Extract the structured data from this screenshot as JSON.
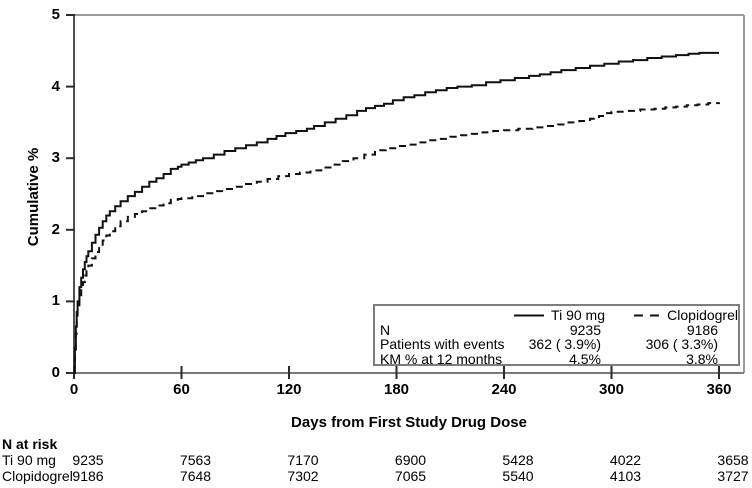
{
  "y_axis": {
    "label": "Cumulative %"
  },
  "x_axis": {
    "label": "Days from First Study Drug Dose"
  },
  "legend": {
    "series": [
      {
        "name": "Ti 90 mg",
        "line_style": "solid"
      },
      {
        "name": "Clopidogrel",
        "line_style": "dashed"
      }
    ],
    "rows": [
      {
        "label": "N",
        "values": [
          "9235",
          "9186"
        ]
      },
      {
        "label": "Patients with events",
        "values": [
          "362 ( 3.9%)",
          "306 ( 3.3%)"
        ]
      },
      {
        "label": "KM % at 12 months",
        "values": [
          "4.5%",
          "3.8%"
        ]
      }
    ]
  },
  "at_risk": {
    "title": "N at risk",
    "days": [
      0,
      60,
      120,
      180,
      240,
      300,
      360
    ],
    "rows": [
      {
        "label": "Ti 90 mg",
        "values": [
          "9235",
          "7563",
          "7170",
          "6900",
          "5428",
          "4022",
          "3658"
        ]
      },
      {
        "label": "Clopidogrel",
        "values": [
          "9186",
          "7648",
          "7302",
          "7065",
          "5540",
          "4103",
          "3727"
        ]
      }
    ]
  },
  "chart_data": {
    "type": "line",
    "title": "",
    "xlabel": "Days from First Study Drug Dose",
    "ylabel": "Cumulative %",
    "xlim": [
      0,
      374
    ],
    "ylim": [
      0,
      5
    ],
    "x_ticks": [
      0,
      60,
      120,
      180,
      240,
      300,
      360
    ],
    "y_ticks": [
      0,
      1,
      2,
      3,
      4,
      5
    ],
    "grid": false,
    "legend_position": "inside lower right",
    "interpolation": "step-after",
    "line_color": "#111111",
    "frame_color": "#8a8a8a",
    "series": [
      {
        "name": "Ti 90 mg",
        "style": "solid",
        "points": [
          [
            0,
            0
          ],
          [
            0.5,
            0.35
          ],
          [
            1,
            0.65
          ],
          [
            1.5,
            0.85
          ],
          [
            2,
            1.0
          ],
          [
            3,
            1.2
          ],
          [
            4,
            1.33
          ],
          [
            5,
            1.45
          ],
          [
            6,
            1.55
          ],
          [
            7,
            1.63
          ],
          [
            8,
            1.7
          ],
          [
            10,
            1.82
          ],
          [
            12,
            1.93
          ],
          [
            14,
            2.03
          ],
          [
            16,
            2.12
          ],
          [
            18,
            2.2
          ],
          [
            20,
            2.26
          ],
          [
            23,
            2.33
          ],
          [
            26,
            2.4
          ],
          [
            30,
            2.47
          ],
          [
            34,
            2.53
          ],
          [
            38,
            2.6
          ],
          [
            42,
            2.67
          ],
          [
            46,
            2.72
          ],
          [
            50,
            2.78
          ],
          [
            54,
            2.85
          ],
          [
            58,
            2.88
          ],
          [
            60,
            2.91
          ],
          [
            64,
            2.94
          ],
          [
            68,
            2.97
          ],
          [
            72,
            3.0
          ],
          [
            78,
            3.05
          ],
          [
            84,
            3.1
          ],
          [
            90,
            3.14
          ],
          [
            96,
            3.18
          ],
          [
            102,
            3.22
          ],
          [
            108,
            3.27
          ],
          [
            113,
            3.31
          ],
          [
            118,
            3.35
          ],
          [
            124,
            3.38
          ],
          [
            130,
            3.41
          ],
          [
            134,
            3.45
          ],
          [
            140,
            3.5
          ],
          [
            146,
            3.55
          ],
          [
            152,
            3.6
          ],
          [
            158,
            3.66
          ],
          [
            163,
            3.7
          ],
          [
            168,
            3.73
          ],
          [
            173,
            3.76
          ],
          [
            178,
            3.81
          ],
          [
            184,
            3.85
          ],
          [
            190,
            3.88
          ],
          [
            196,
            3.92
          ],
          [
            202,
            3.95
          ],
          [
            208,
            3.98
          ],
          [
            214,
            4.0
          ],
          [
            222,
            4.02
          ],
          [
            230,
            4.06
          ],
          [
            238,
            4.09
          ],
          [
            246,
            4.12
          ],
          [
            254,
            4.15
          ],
          [
            260,
            4.17
          ],
          [
            266,
            4.2
          ],
          [
            272,
            4.23
          ],
          [
            280,
            4.26
          ],
          [
            288,
            4.29
          ],
          [
            296,
            4.32
          ],
          [
            304,
            4.35
          ],
          [
            312,
            4.37
          ],
          [
            320,
            4.4
          ],
          [
            328,
            4.42
          ],
          [
            336,
            4.44
          ],
          [
            343,
            4.46
          ],
          [
            349,
            4.47
          ],
          [
            360,
            4.47
          ]
        ]
      },
      {
        "name": "Clopidogrel",
        "style": "dashed",
        "points": [
          [
            0,
            0
          ],
          [
            0.5,
            0.3
          ],
          [
            1,
            0.55
          ],
          [
            1.5,
            0.75
          ],
          [
            2,
            0.9
          ],
          [
            3,
            1.05
          ],
          [
            4,
            1.17
          ],
          [
            5,
            1.27
          ],
          [
            6,
            1.36
          ],
          [
            7,
            1.43
          ],
          [
            8,
            1.5
          ],
          [
            10,
            1.6
          ],
          [
            12,
            1.69
          ],
          [
            14,
            1.77
          ],
          [
            16,
            1.85
          ],
          [
            18,
            1.92
          ],
          [
            20,
            1.98
          ],
          [
            23,
            2.05
          ],
          [
            26,
            2.12
          ],
          [
            30,
            2.18
          ],
          [
            34,
            2.22
          ],
          [
            38,
            2.26
          ],
          [
            42,
            2.3
          ],
          [
            46,
            2.34
          ],
          [
            50,
            2.37
          ],
          [
            54,
            2.42
          ],
          [
            58,
            2.43
          ],
          [
            60,
            2.44
          ],
          [
            66,
            2.47
          ],
          [
            72,
            2.51
          ],
          [
            78,
            2.54
          ],
          [
            84,
            2.57
          ],
          [
            90,
            2.6
          ],
          [
            96,
            2.64
          ],
          [
            102,
            2.67
          ],
          [
            108,
            2.71
          ],
          [
            114,
            2.75
          ],
          [
            120,
            2.78
          ],
          [
            126,
            2.8
          ],
          [
            132,
            2.83
          ],
          [
            138,
            2.87
          ],
          [
            144,
            2.91
          ],
          [
            150,
            2.96
          ],
          [
            156,
            3.0
          ],
          [
            162,
            3.05
          ],
          [
            168,
            3.11
          ],
          [
            174,
            3.14
          ],
          [
            180,
            3.17
          ],
          [
            186,
            3.19
          ],
          [
            192,
            3.22
          ],
          [
            198,
            3.25
          ],
          [
            204,
            3.27
          ],
          [
            210,
            3.3
          ],
          [
            216,
            3.32
          ],
          [
            222,
            3.34
          ],
          [
            228,
            3.36
          ],
          [
            234,
            3.38
          ],
          [
            240,
            3.39
          ],
          [
            248,
            3.41
          ],
          [
            256,
            3.43
          ],
          [
            264,
            3.45
          ],
          [
            270,
            3.47
          ],
          [
            276,
            3.5
          ],
          [
            282,
            3.52
          ],
          [
            288,
            3.55
          ],
          [
            293,
            3.59
          ],
          [
            297,
            3.63
          ],
          [
            300,
            3.65
          ],
          [
            308,
            3.66
          ],
          [
            316,
            3.68
          ],
          [
            324,
            3.69
          ],
          [
            330,
            3.71
          ],
          [
            336,
            3.72
          ],
          [
            342,
            3.74
          ],
          [
            348,
            3.75
          ],
          [
            354,
            3.77
          ],
          [
            360,
            3.78
          ]
        ]
      }
    ]
  }
}
